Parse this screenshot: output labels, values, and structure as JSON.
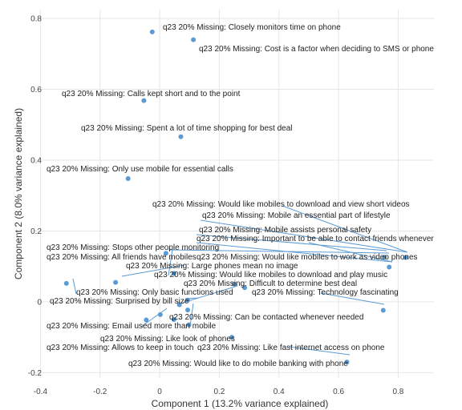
{
  "chart_data": {
    "type": "scatter",
    "xlabel": "Component 1 (13.2% variance explained)",
    "ylabel": "Component 2 (8.0% variance explained)",
    "xlim": [
      -0.42,
      0.92
    ],
    "ylim": [
      -0.215,
      0.825
    ],
    "xticks": [
      -0.4,
      -0.2,
      0,
      0.2,
      0.4,
      0.6,
      0.8
    ],
    "xtick_labels": [
      "-0.4",
      "-0.2",
      "0",
      "0.2",
      "0.4",
      "0.6",
      "0.8"
    ],
    "yticks": [
      -0.2,
      0,
      0.2,
      0.4,
      0.6,
      0.8
    ],
    "ytick_labels": [
      "-0.2",
      "0",
      "0.2",
      "0.4",
      "0.6",
      "0.8"
    ],
    "grid": true,
    "point_color": "#5b9bd5",
    "leader_color": "#5b9bd5",
    "points": [
      {
        "label": "q23 20% Missing: Closely monitors time on phone",
        "x": -0.025,
        "y": 0.762
      },
      {
        "label": "q23 20% Missing: Cost is a factor when deciding to SMS or phone",
        "x": 0.113,
        "y": 0.74
      },
      {
        "label": "q23 20% Missing: Calls kept short and to the point",
        "x": -0.053,
        "y": 0.568
      },
      {
        "label": "q23 20% Missing: Spent a lot of time shopping for best deal",
        "x": 0.071,
        "y": 0.466
      },
      {
        "label": "q23 20% Missing: Only use mobile for essential calls",
        "x": -0.106,
        "y": 0.348
      },
      {
        "label": "q23 20% Missing: Would like mobiles to download and view short videos",
        "x": 0.754,
        "y": 0.126
      },
      {
        "label": "q23 20% Missing: Mobile an essential part of lifestyle",
        "x": 0.825,
        "y": 0.125
      },
      {
        "label": "q23 20% Missing: Mobile assists personal safety",
        "x": 0.048,
        "y": 0.08
      },
      {
        "label": "q23 20% Missing: Important to be able to contact friends whenever",
        "x": 0.77,
        "y": 0.098
      },
      {
        "label": "q23 20% Missing: Stops other people monitoring",
        "x": 0.021,
        "y": 0.137
      },
      {
        "label": "q23 20% Missing: All friends have mobiles",
        "x": -0.148,
        "y": 0.055
      },
      {
        "label": "q23 20% Missing: Would like mobiles to work as video phones",
        "x": 0.094,
        "y": 0.005
      },
      {
        "label": "q23 20% Missing: Large phones mean no image",
        "x": 0.094,
        "y": -0.023
      },
      {
        "label": "q23 20% Missing: Would like mobiles to download and play music",
        "x": 0.25,
        "y": 0.05
      },
      {
        "label": "q23 20% Missing: Difficult to determine best deal",
        "x": 0.285,
        "y": 0.04
      },
      {
        "label": "q23 20% Missing: Only basic functions used",
        "x": -0.313,
        "y": 0.052
      },
      {
        "label": "q23 20% Missing: Technology fascinating",
        "x": 0.75,
        "y": -0.024
      },
      {
        "label": "q23 20% Missing: Surprised by bill size",
        "x": 0.002,
        "y": -0.036
      },
      {
        "label": "q23 20% Missing: Can be contacted whenever needed",
        "x": 0.066,
        "y": -0.008
      },
      {
        "label": "q23 20% Missing: Email used more than mobile",
        "x": -0.045,
        "y": -0.051
      },
      {
        "label": "q23 20% Missing: Like look of phones",
        "x": 0.242,
        "y": -0.1
      },
      {
        "label": "q23 20% Missing: Allows to keep in touch",
        "x": 0.098,
        "y": -0.065
      },
      {
        "label": "q23 20% Missing: Like fast internet access on phone",
        "x": 0.628,
        "y": -0.17
      },
      {
        "label": "q23 20% Missing: Would like to do mobile banking with phone",
        "x": 0.048,
        "y": -0.05
      }
    ]
  }
}
